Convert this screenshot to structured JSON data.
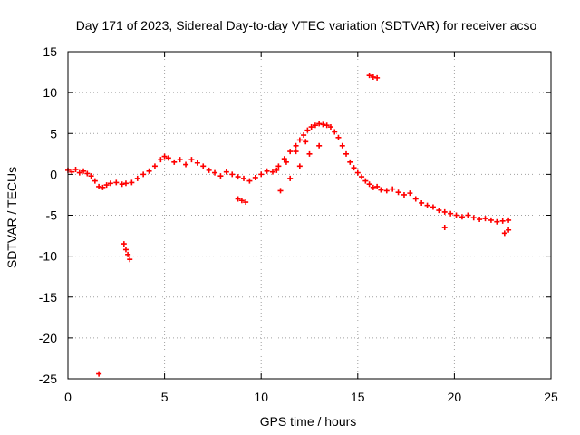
{
  "chart_data": {
    "type": "scatter",
    "title": "Day 171 of 2023, Sidereal Day-to-day VTEC variation (SDTVAR) for receiver acso",
    "xlabel": "GPS time / hours",
    "ylabel": "SDTVAR / TECUs",
    "xlim": [
      0,
      25
    ],
    "ylim": [
      -25,
      15
    ],
    "xticks": [
      0,
      5,
      10,
      15,
      20,
      25
    ],
    "yticks": [
      -25,
      -20,
      -15,
      -10,
      -5,
      0,
      5,
      10,
      15
    ],
    "xtick_labels": [
      "0",
      "5",
      "10",
      "15",
      "20",
      "25"
    ],
    "ytick_labels": [
      "-25",
      "-20",
      "-15",
      "-10",
      "-5",
      "0",
      "5",
      "10",
      "15"
    ],
    "grid": true,
    "marker": "+",
    "color": "#ff0000",
    "series": [
      {
        "name": "SDTVAR",
        "x": [
          0.0,
          0.2,
          0.4,
          0.6,
          0.8,
          1.0,
          1.2,
          1.4,
          1.6,
          1.8,
          2.0,
          2.2,
          2.5,
          2.8,
          3.0,
          3.3,
          3.6,
          3.9,
          4.2,
          4.5,
          4.8,
          5.0,
          5.2,
          5.5,
          5.8,
          6.1,
          6.4,
          6.7,
          7.0,
          7.3,
          7.6,
          7.9,
          8.2,
          8.5,
          8.8,
          9.1,
          9.4,
          9.7,
          10.0,
          10.3,
          10.6,
          10.9,
          11.2,
          11.5,
          11.8,
          12.0,
          12.2,
          12.4,
          12.6,
          12.8,
          13.0,
          13.2,
          13.4,
          13.6,
          13.8,
          14.0,
          14.2,
          14.4,
          14.6,
          14.8,
          15.0,
          15.2,
          15.4,
          15.6,
          15.8,
          16.0,
          16.2,
          16.5,
          16.8,
          17.1,
          17.4,
          17.7,
          18.0,
          18.3,
          18.6,
          18.9,
          19.2,
          19.5,
          19.8,
          20.1,
          20.4,
          20.7,
          21.0,
          21.3,
          21.6,
          21.9,
          22.2,
          22.5,
          22.8,
          1.6,
          2.9,
          3.0,
          3.1,
          3.2,
          8.8,
          9.0,
          9.2,
          15.6,
          15.8,
          16.0,
          19.5,
          22.6,
          22.8,
          11.0,
          11.5,
          12.0,
          12.5,
          13.0,
          10.8,
          11.3,
          11.8,
          12.3
        ],
        "y": [
          0.5,
          0.3,
          0.6,
          0.2,
          0.4,
          0.1,
          -0.2,
          -0.8,
          -1.5,
          -1.6,
          -1.3,
          -1.1,
          -1.0,
          -1.2,
          -1.1,
          -1.0,
          -0.5,
          0.0,
          0.4,
          1.0,
          1.8,
          2.2,
          2.0,
          1.5,
          1.8,
          1.2,
          1.8,
          1.4,
          1.0,
          0.5,
          0.2,
          -0.2,
          0.3,
          0.0,
          -0.3,
          -0.5,
          -0.8,
          -0.4,
          0.0,
          0.4,
          0.3,
          1.0,
          1.9,
          2.8,
          3.5,
          4.2,
          4.8,
          5.4,
          5.8,
          6.0,
          6.2,
          6.1,
          6.0,
          5.8,
          5.2,
          4.5,
          3.5,
          2.5,
          1.5,
          0.8,
          0.2,
          -0.3,
          -0.8,
          -1.2,
          -1.6,
          -1.5,
          -1.9,
          -2.0,
          -1.8,
          -2.2,
          -2.5,
          -2.3,
          -3.0,
          -3.5,
          -3.8,
          -4.0,
          -4.4,
          -4.6,
          -4.8,
          -5.0,
          -5.2,
          -5.0,
          -5.3,
          -5.5,
          -5.4,
          -5.6,
          -5.8,
          -5.7,
          -5.6,
          -24.4,
          -8.5,
          -9.2,
          -9.8,
          -10.4,
          -3.0,
          -3.2,
          -3.4,
          12.1,
          11.9,
          11.8,
          -6.5,
          -7.2,
          -6.8,
          -2.0,
          -0.5,
          1.0,
          2.5,
          3.5,
          0.5,
          1.5,
          2.8,
          4.0
        ]
      }
    ]
  }
}
